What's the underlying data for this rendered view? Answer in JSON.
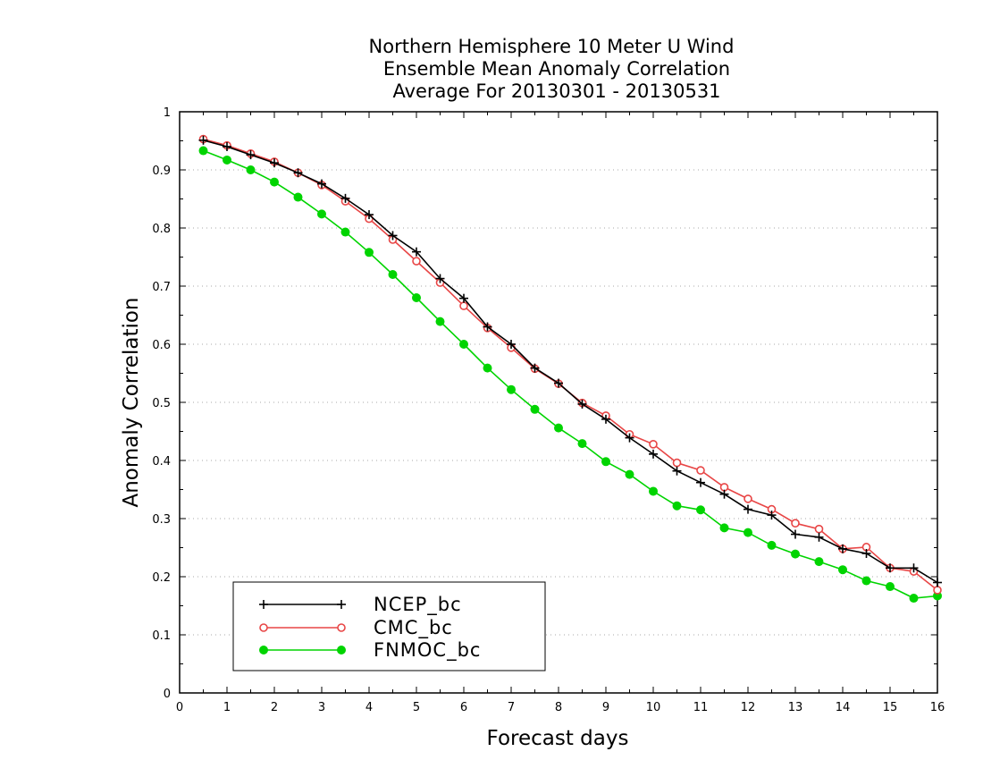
{
  "chart_data": {
    "type": "line",
    "title_lines": [
      "Northern Hemisphere 10 Meter U Wind",
      "Ensemble Mean Anomaly Correlation",
      "Average For 20130301 - 20130531"
    ],
    "xlabel": "Forecast days",
    "ylabel": "Anomaly Correlation",
    "xlim": [
      0,
      16
    ],
    "ylim": [
      0,
      1
    ],
    "x_ticks": [
      "0",
      "1",
      "2",
      "3",
      "4",
      "5",
      "6",
      "7",
      "8",
      "9",
      "10",
      "11",
      "12",
      "13",
      "14",
      "15",
      "16"
    ],
    "y_ticks": [
      "0",
      "0.1",
      "0.2",
      "0.3",
      "0.4",
      "0.5",
      "0.6",
      "0.7",
      "0.8",
      "0.9",
      "1"
    ],
    "grid": "horizontal dotted",
    "legend_position": "bottom-left",
    "x": [
      0.5,
      1,
      1.5,
      2,
      2.5,
      3,
      3.5,
      4,
      4.5,
      5,
      5.5,
      6,
      6.5,
      7,
      7.5,
      8,
      8.5,
      9,
      9.5,
      10,
      10.5,
      11,
      11.5,
      12,
      12.5,
      13,
      13.5,
      14,
      14.5,
      15,
      15.5,
      16
    ],
    "series": [
      {
        "name": "NCEP_bc",
        "color": "#000000",
        "marker": "plus",
        "values": [
          0.951,
          0.94,
          0.926,
          0.912,
          0.895,
          0.876,
          0.851,
          0.823,
          0.787,
          0.759,
          0.713,
          0.679,
          0.63,
          0.6,
          0.559,
          0.533,
          0.497,
          0.471,
          0.439,
          0.411,
          0.382,
          0.362,
          0.342,
          0.316,
          0.306,
          0.273,
          0.268,
          0.248,
          0.24,
          0.215,
          0.215,
          0.19
        ]
      },
      {
        "name": "CMC_bc",
        "color": "#e84646",
        "marker": "open-circle",
        "values": [
          0.953,
          0.942,
          0.928,
          0.914,
          0.895,
          0.874,
          0.846,
          0.816,
          0.78,
          0.743,
          0.706,
          0.666,
          0.628,
          0.594,
          0.558,
          0.532,
          0.499,
          0.477,
          0.445,
          0.428,
          0.396,
          0.383,
          0.354,
          0.334,
          0.316,
          0.292,
          0.282,
          0.248,
          0.251,
          0.215,
          0.209,
          0.177
        ]
      },
      {
        "name": "FNMOC_bc",
        "color": "#00d400",
        "marker": "filled-circle",
        "values": [
          0.933,
          0.917,
          0.9,
          0.879,
          0.853,
          0.824,
          0.793,
          0.758,
          0.72,
          0.68,
          0.639,
          0.6,
          0.559,
          0.522,
          0.488,
          0.456,
          0.429,
          0.398,
          0.376,
          0.347,
          0.322,
          0.315,
          0.284,
          0.276,
          0.254,
          0.239,
          0.226,
          0.212,
          0.193,
          0.183,
          0.163,
          0.167
        ]
      }
    ]
  }
}
